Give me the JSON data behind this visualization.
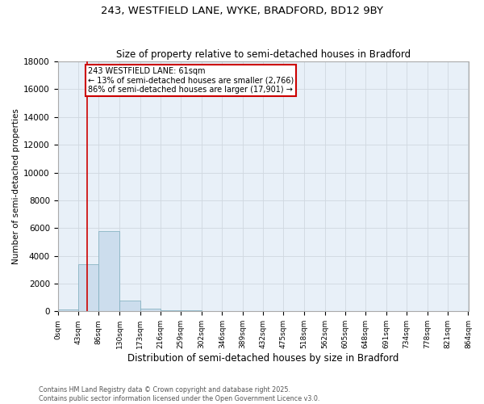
{
  "title_line1": "243, WESTFIELD LANE, WYKE, BRADFORD, BD12 9BY",
  "title_line2": "Size of property relative to semi-detached houses in Bradford",
  "xlabel": "Distribution of semi-detached houses by size in Bradford",
  "ylabel": "Number of semi-detached properties",
  "property_size": 61,
  "annotation_line1": "243 WESTFIELD LANE: 61sqm",
  "annotation_line2": "← 13% of semi-detached houses are smaller (2,766)",
  "annotation_line3": "86% of semi-detached houses are larger (17,901) →",
  "bin_edges": [
    0,
    43,
    86,
    130,
    173,
    216,
    259,
    302,
    346,
    389,
    432,
    475,
    518,
    562,
    605,
    648,
    691,
    734,
    778,
    821,
    864
  ],
  "bin_counts": [
    150,
    3400,
    5800,
    800,
    200,
    100,
    50,
    5,
    0,
    0,
    0,
    0,
    0,
    0,
    0,
    0,
    0,
    0,
    0,
    0
  ],
  "bar_color": "#ccdded",
  "bar_edge_color": "#7aaabb",
  "grid_color": "#d0d8e0",
  "bg_color": "#e8f0f8",
  "red_line_color": "#cc0000",
  "annotation_box_color": "#cc0000",
  "ylim": [
    0,
    18000
  ],
  "yticks": [
    0,
    2000,
    4000,
    6000,
    8000,
    10000,
    12000,
    14000,
    16000,
    18000
  ],
  "tick_labels": [
    "0sqm",
    "43sqm",
    "86sqm",
    "130sqm",
    "173sqm",
    "216sqm",
    "259sqm",
    "302sqm",
    "346sqm",
    "389sqm",
    "432sqm",
    "475sqm",
    "518sqm",
    "562sqm",
    "605sqm",
    "648sqm",
    "691sqm",
    "734sqm",
    "778sqm",
    "821sqm",
    "864sqm"
  ],
  "footer_line1": "Contains HM Land Registry data © Crown copyright and database right 2025.",
  "footer_line2": "Contains public sector information licensed under the Open Government Licence v3.0."
}
